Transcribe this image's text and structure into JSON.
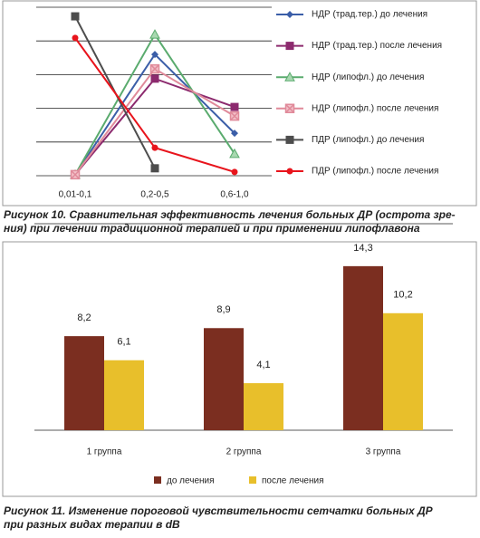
{
  "chart_data": [
    {
      "type": "line",
      "categories": [
        "0,01-0,1",
        "0,2-0,5",
        "0,6-1,0"
      ],
      "ylim": [
        0,
        5
      ],
      "yticks": [
        0,
        1,
        2,
        3,
        4,
        5
      ],
      "grid": true,
      "legend": "right",
      "caption": [
        "Рисунок 10. Сравнительная эффективность лечения больных  ДР (острота зре-",
        "ния) при лечении традиционной терапией и при применении липофлавона"
      ],
      "series": [
        {
          "name": "НДР (трад.тер.) до лечения",
          "color": "#3b5ea8",
          "marker": "diamond",
          "values": [
            0.03,
            3.6,
            1.26
          ]
        },
        {
          "name": "НДР (трад.тер.) после лечения",
          "color": "#8c2a6e",
          "marker": "square",
          "values": [
            0.03,
            2.88,
            2.04
          ]
        },
        {
          "name": "НДР (липофл.) до лечения",
          "color": "#5aab6e",
          "marker": "triangle",
          "values": [
            0.03,
            4.19,
            0.65
          ]
        },
        {
          "name": "НДР (липофл.) после лечения",
          "color": "#e08a9a",
          "marker": "xsquare",
          "values": [
            0.03,
            3.17,
            1.77
          ]
        },
        {
          "name": "ПДР (липофл.) до лечения",
          "color": "#4d4d4d",
          "marker": "square",
          "values": [
            4.73,
            0.22,
            null
          ]
        },
        {
          "name": "ПДР (липофл.) после лечения",
          "color": "#e8141c",
          "marker": "circle",
          "values": [
            4.09,
            0.83,
            0.11
          ]
        }
      ]
    },
    {
      "type": "bar",
      "categories": [
        "1  группа",
        "2  группа",
        "3  группа"
      ],
      "ylim": [
        0,
        18
      ],
      "yticks": [
        0,
        18
      ],
      "grid": true,
      "legend": "bottom",
      "caption": [
        "Рисунок 11. Изменение пороговой чувствительности сетчатки больных ДР",
        "при разных видах терапии в dB"
      ],
      "series": [
        {
          "name": "до лечения",
          "color": "#7b2e20",
          "values": [
            8.2,
            8.9,
            14.3
          ],
          "value_labels": [
            "8,2",
            "8,9",
            "14,3"
          ]
        },
        {
          "name": "после лечения",
          "color": "#e8bf2b",
          "values": [
            6.1,
            4.1,
            10.2
          ],
          "value_labels": [
            "6,1",
            "4,1",
            "10,2"
          ]
        }
      ]
    }
  ]
}
